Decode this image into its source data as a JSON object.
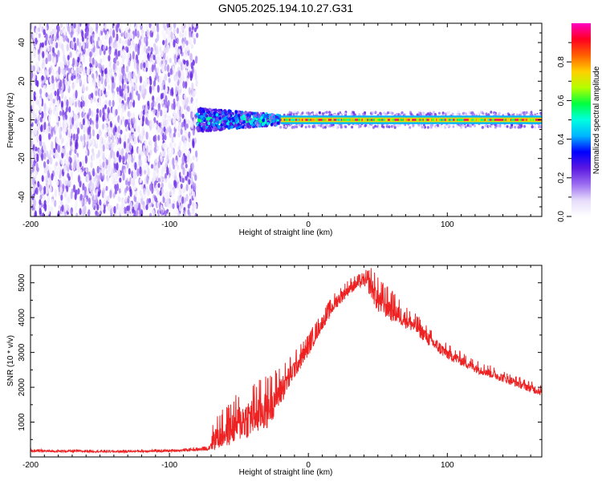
{
  "title": "GN05.2025.194.10.27.G31",
  "colors": {
    "snr_line": "#ee2222",
    "colormap": [
      "#ffffff",
      "#e6dcfa",
      "#9b6cf0",
      "#5a18e0",
      "#0000ff",
      "#00b4ff",
      "#00ffe0",
      "#00ff40",
      "#b4ff00",
      "#ffd000",
      "#ff6000",
      "#ff0020",
      "#ff00c0"
    ]
  },
  "chart_data": [
    {
      "type": "heatmap",
      "xlabel": "Height of straight line (km)",
      "ylabel": "Frequency (Hz)",
      "xlim": [
        -200,
        168
      ],
      "ylim": [
        -50,
        50
      ],
      "xticks": [
        -200,
        -100,
        0,
        100
      ],
      "yticks": [
        -40,
        -20,
        0,
        20,
        40
      ],
      "colorbar": {
        "label": "Normalized spectral amplitude",
        "range": [
          0,
          1
        ],
        "ticks": [
          0.0,
          0.2,
          0.4,
          0.6,
          0.8
        ]
      },
      "regions": [
        {
          "description": "diffuse noise",
          "x": [
            -200,
            -80
          ],
          "y": [
            -50,
            50
          ],
          "amplitude": 0.05
        },
        {
          "description": "transition band",
          "x": [
            -80,
            -20
          ],
          "y": [
            -6,
            6
          ],
          "amplitude": 0.35
        },
        {
          "description": "carrier line",
          "x": [
            -20,
            168
          ],
          "y": [
            -1,
            1
          ],
          "amplitude": 0.95
        },
        {
          "description": "sidelobe spread",
          "x": [
            -20,
            168
          ],
          "y": [
            -4,
            4
          ],
          "amplitude": 0.2
        }
      ]
    },
    {
      "type": "line",
      "xlabel": "Height of straight line (km)",
      "ylabel": "SNR (10 * v/v)",
      "xlim": [
        -200,
        168
      ],
      "ylim": [
        0,
        5500
      ],
      "xticks": [
        -200,
        -100,
        0,
        100
      ],
      "yticks": [
        1000,
        2000,
        3000,
        4000,
        5000
      ],
      "grid": false,
      "series": [
        {
          "x": [
            -200,
            -180,
            -160,
            -140,
            -120,
            -100,
            -90,
            -80,
            -72,
            -68,
            -60,
            -50,
            -40,
            -30,
            -20,
            -10,
            0,
            10,
            20,
            30,
            40,
            45,
            50,
            60,
            70,
            80,
            90,
            100,
            110,
            120,
            130,
            140,
            150,
            160,
            168
          ],
          "y": [
            180,
            170,
            170,
            160,
            170,
            180,
            200,
            220,
            250,
            600,
            800,
            1100,
            1300,
            1500,
            2000,
            2600,
            3200,
            3900,
            4500,
            4900,
            5100,
            5000,
            4600,
            4300,
            4000,
            3700,
            3300,
            3000,
            2800,
            2600,
            2450,
            2300,
            2150,
            2000,
            1900
          ],
          "noise": [
            60,
            60,
            60,
            60,
            60,
            60,
            60,
            80,
            100,
            700,
            900,
            1100,
            1200,
            1200,
            900,
            600,
            500,
            400,
            400,
            350,
            300,
            700,
            800,
            700,
            500,
            450,
            400,
            350,
            300,
            300,
            280,
            260,
            250,
            250,
            250
          ]
        }
      ]
    }
  ]
}
